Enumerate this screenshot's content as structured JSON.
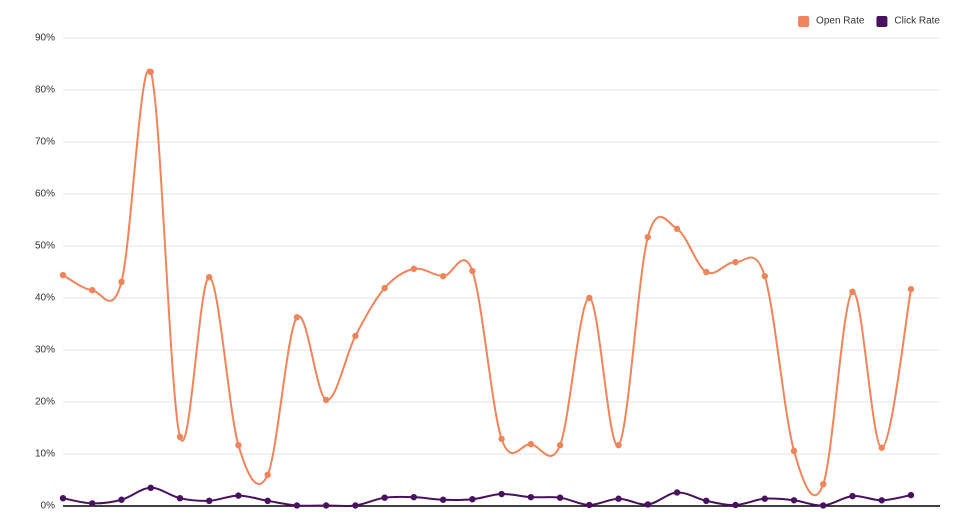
{
  "chart_data": {
    "type": "line",
    "categories": [
      null,
      null,
      null,
      null,
      null,
      null,
      null,
      null,
      null,
      null,
      null,
      null,
      null,
      null,
      null,
      null,
      null,
      null,
      null,
      null,
      null,
      null,
      null,
      null,
      null,
      null,
      null,
      null,
      null,
      null
    ],
    "series": [
      {
        "name": "Open Rate",
        "color": "#f0845a",
        "values": [
          44.4,
          41.5,
          43.1,
          83.5,
          13.3,
          44.0,
          11.7,
          6.0,
          36.3,
          20.4,
          32.7,
          41.9,
          45.6,
          44.2,
          45.2,
          12.9,
          11.9,
          11.7,
          40.0,
          11.7,
          51.7,
          53.3,
          45.0,
          46.9,
          44.2,
          10.6,
          4.2,
          41.2,
          11.2,
          41.7
        ]
      },
      {
        "name": "Click Rate",
        "color": "#4a1060",
        "values": [
          1.5,
          0.5,
          1.2,
          3.5,
          1.5,
          1.0,
          2.0,
          1.0,
          0.1,
          0.1,
          0.1,
          1.6,
          1.7,
          1.2,
          1.3,
          2.3,
          1.7,
          1.6,
          0.2,
          1.4,
          0.3,
          2.6,
          1.0,
          0.2,
          1.4,
          1.1,
          0.1,
          1.9,
          1.1,
          2.1
        ]
      }
    ],
    "ylim": [
      0,
      90
    ],
    "yticks": [
      {
        "value": 0,
        "label": "0%"
      },
      {
        "value": 10,
        "label": "10%"
      },
      {
        "value": 20,
        "label": "20%"
      },
      {
        "value": 30,
        "label": "30%"
      },
      {
        "value": 40,
        "label": "40%"
      },
      {
        "value": 50,
        "label": "50%"
      },
      {
        "value": 60,
        "label": "60%"
      },
      {
        "value": 70,
        "label": "70%"
      },
      {
        "value": 80,
        "label": "80%"
      },
      {
        "value": 90,
        "label": "90%"
      }
    ],
    "grid": true,
    "legend": "top-right"
  }
}
